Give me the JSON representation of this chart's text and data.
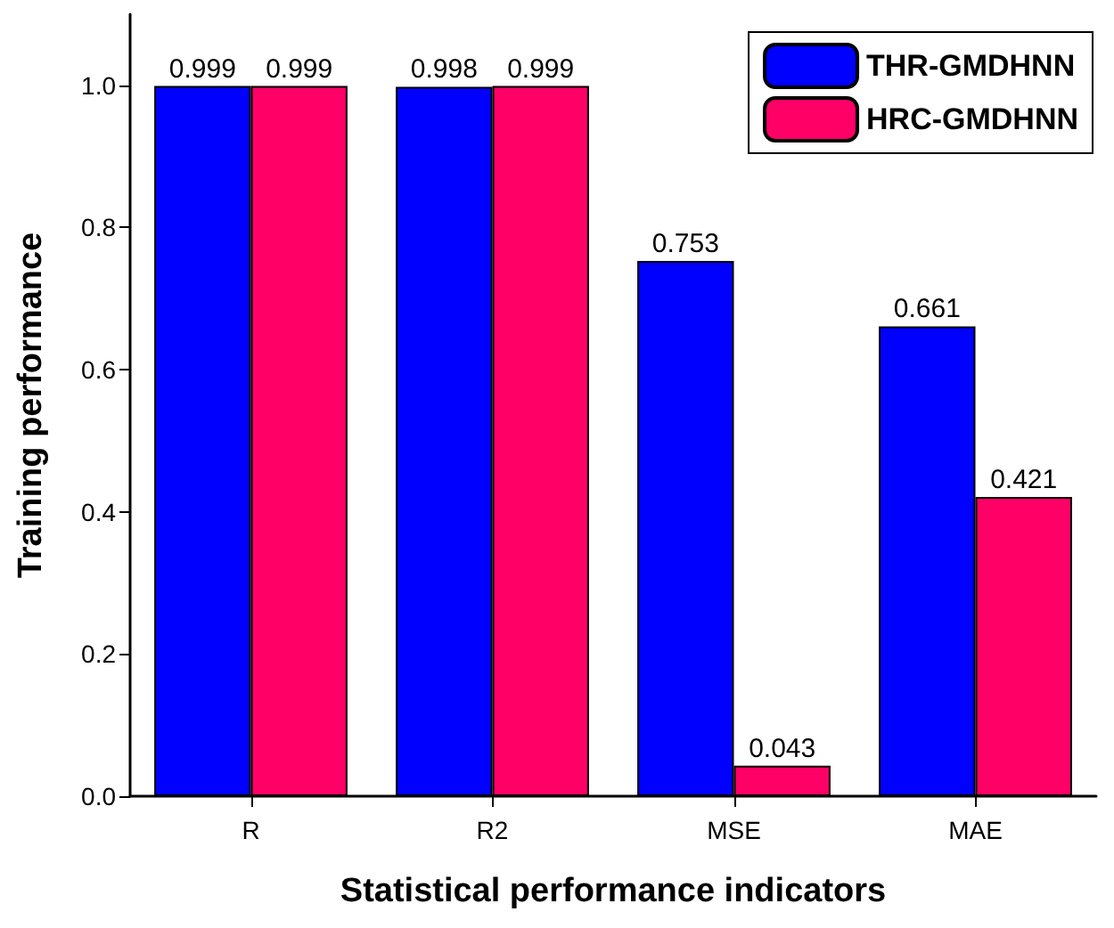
{
  "chart_data": {
    "type": "bar",
    "xlabel": "Statistical performance indicators",
    "ylabel": "Training performance",
    "categories": [
      "R",
      "R2",
      "MSE",
      "MAE"
    ],
    "series": [
      {
        "name": "THR-GMDHNN",
        "color": "#0000ff",
        "values": [
          0.999,
          0.998,
          0.753,
          0.661
        ]
      },
      {
        "name": "HRC-GMDHNN",
        "color": "#ff0066",
        "values": [
          0.999,
          0.999,
          0.043,
          0.421
        ]
      }
    ],
    "ylim": [
      0,
      1.1
    ],
    "yticks": [
      {
        "value": 0,
        "label": "0.0"
      },
      {
        "value": 0.2,
        "label": "0.2"
      },
      {
        "value": 0.4,
        "label": "0.4"
      },
      {
        "value": 0.6,
        "label": "0.6"
      },
      {
        "value": 0.8,
        "label": "0.8"
      },
      {
        "value": 1,
        "label": "1.0"
      }
    ],
    "data_labels": true,
    "legend": "top right",
    "grid": false
  }
}
